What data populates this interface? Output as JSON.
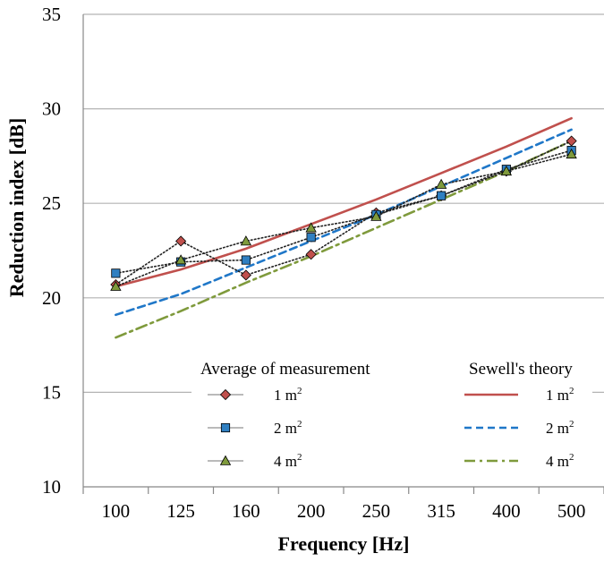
{
  "chart_data": {
    "type": "line",
    "title": "",
    "xlabel": "Frequency  [Hz]",
    "ylabel": "Reduction index [dB]",
    "categories": [
      "100",
      "125",
      "160",
      "200",
      "250",
      "315",
      "400",
      "500"
    ],
    "ylim": [
      10,
      35
    ],
    "yticks": [
      10,
      15,
      20,
      25,
      30,
      35
    ],
    "grid": "horizontal",
    "legend": {
      "placement": "bottom-right",
      "groups": [
        {
          "header": "Average  of measurement",
          "entries": [
            {
              "base": "1 m",
              "sup": "2"
            },
            {
              "base": "2 m",
              "sup": "2"
            },
            {
              "base": "4 m",
              "sup": "2"
            }
          ]
        },
        {
          "header": "Sewell's theory",
          "entries": [
            {
              "base": "1 m",
              "sup": "2"
            },
            {
              "base": "2 m",
              "sup": "2"
            },
            {
              "base": "4 m",
              "sup": "2"
            }
          ]
        }
      ]
    },
    "series": [
      {
        "group": "measurement",
        "legend_index": 0,
        "marker": "diamond",
        "color": "#c0504d",
        "line": "dotted",
        "values": [
          20.7,
          23.0,
          21.2,
          22.3,
          24.5,
          25.4,
          26.7,
          28.3
        ]
      },
      {
        "group": "measurement",
        "legend_index": 1,
        "marker": "square",
        "color": "#2f7fc1",
        "line": "dotted",
        "values": [
          21.3,
          21.9,
          22.0,
          23.2,
          24.4,
          25.4,
          26.8,
          27.8
        ]
      },
      {
        "group": "measurement",
        "legend_index": 2,
        "marker": "triangle",
        "color": "#7f9a3c",
        "line": "dotted",
        "values": [
          20.6,
          22.0,
          23.0,
          23.7,
          24.3,
          26.0,
          26.7,
          27.6
        ]
      },
      {
        "group": "theory",
        "legend_index": 0,
        "color": "#c0504d",
        "line": "solid",
        "values": [
          20.6,
          21.5,
          22.6,
          23.9,
          25.2,
          26.6,
          28.0,
          29.5
        ]
      },
      {
        "group": "theory",
        "legend_index": 1,
        "color": "#1f77c8",
        "line": "dashed",
        "values": [
          19.1,
          20.2,
          21.6,
          23.0,
          24.4,
          25.9,
          27.4,
          28.9
        ]
      },
      {
        "group": "theory",
        "legend_index": 2,
        "color": "#7f9a3c",
        "line": "dashdot",
        "values": [
          17.9,
          19.3,
          20.8,
          22.2,
          23.7,
          25.2,
          26.7,
          28.3
        ]
      }
    ]
  }
}
